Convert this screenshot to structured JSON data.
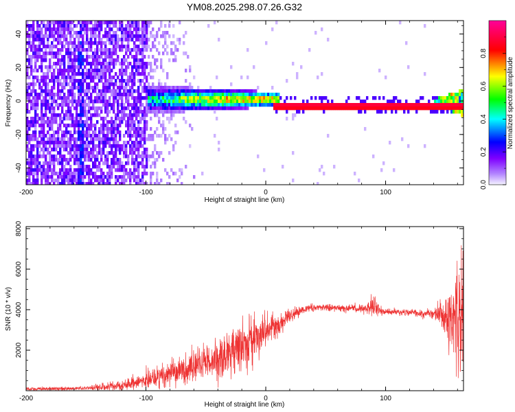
{
  "title": "YM08.2025.298.07.26.G32",
  "chart_data": [
    {
      "type": "heatmap",
      "title": "YM08.2025.298.07.26.G32",
      "xlabel": "Height of straight line (km)",
      "ylabel": "Frequency (Hz)",
      "xlim": [
        -200,
        165
      ],
      "ylim": [
        -50,
        48
      ],
      "xticks": [
        -200,
        -100,
        0,
        100
      ],
      "yticks": [
        -40,
        -20,
        0,
        20,
        40
      ],
      "colorbar": {
        "label": "Normalized spectral amplitude",
        "range": [
          0.0,
          1.0
        ],
        "ticks": [
          "0.0",
          "0.2",
          "0.4",
          "0.6",
          "0.8"
        ],
        "colormap": [
          "#e8e8ff",
          "#7f00ff",
          "#0000ff",
          "#00ffff",
          "#00ff00",
          "#ffff00",
          "#ff0000",
          "#ff00aa"
        ]
      },
      "features": {
        "noise_region_x": [
          -200,
          -100
        ],
        "noise_fade_x": [
          -100,
          -60
        ],
        "broad_signal_x": [
          -100,
          10
        ],
        "broad_signal_center_hz": 2,
        "narrow_line_x": [
          5,
          140
        ],
        "narrow_line_center_hz": -2,
        "narrow_line_amplitude": 0.95,
        "tail_spread_x": [
          140,
          165
        ]
      }
    },
    {
      "type": "line",
      "xlabel": "Height of straight line (km)",
      "ylabel": "SNR (10 * v/v)",
      "xlim": [
        -200,
        165
      ],
      "ylim": [
        0,
        8100
      ],
      "xticks": [
        -200,
        -100,
        0,
        100
      ],
      "yticks": [
        2000,
        4000,
        6000,
        8000
      ],
      "color": "#ee3333",
      "envelope": {
        "x": [
          -200,
          -150,
          -120,
          -100,
          -80,
          -60,
          -40,
          -30,
          -20,
          -10,
          0,
          10,
          20,
          30,
          40,
          60,
          80,
          88,
          95,
          100,
          120,
          140,
          150,
          160,
          165
        ],
        "mean": [
          80,
          120,
          250,
          500,
          800,
          1200,
          1600,
          1900,
          2200,
          2600,
          2900,
          3200,
          3700,
          4000,
          4100,
          4100,
          4050,
          4200,
          4000,
          3900,
          3850,
          3800,
          3700,
          3600,
          3400
        ],
        "amplitude": [
          60,
          100,
          250,
          400,
          600,
          700,
          900,
          1000,
          1100,
          900,
          800,
          500,
          300,
          200,
          150,
          150,
          200,
          500,
          300,
          150,
          150,
          200,
          900,
          2500,
          3800
        ]
      }
    }
  ]
}
